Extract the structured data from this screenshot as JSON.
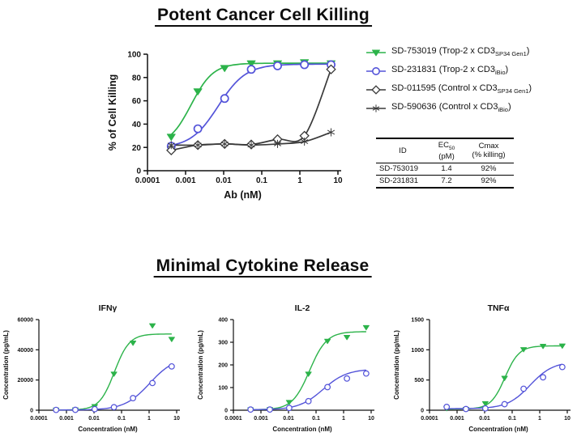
{
  "page": {
    "title1": "Potent Cancer Cell Killing",
    "title2": "Minimal Cytokine Release"
  },
  "legend": {
    "items": [
      {
        "id": "SD-753019",
        "pre": "SD-753019 (Trop-2 x CD3",
        "sub": "SP34 Gen1",
        "post": ")",
        "marker": "triangle-down",
        "color": "#2cb34a"
      },
      {
        "id": "SD-231831",
        "pre": "SD-231831 (Trop-2 x CD3",
        "sub": "iBio",
        "post": ")",
        "marker": "circle-open",
        "color": "#5353d9"
      },
      {
        "id": "SD-011595",
        "pre": "SD-011595 (Control x CD3",
        "sub": "SP34 Gen1",
        "post": ")",
        "marker": "diamond-open",
        "color": "#3a3a3a"
      },
      {
        "id": "SD-590636",
        "pre": "SD-590636 (Control x CD3",
        "sub": "iBio",
        "post": ")",
        "marker": "star",
        "color": "#3a3a3a"
      }
    ]
  },
  "table": {
    "col1_header": "ID",
    "col2_pre": "EC",
    "col2_sub": "50",
    "col2_unit": "(pM)",
    "col3_header": "Cmax",
    "col3_unit": "(% killing)",
    "rows": [
      {
        "id": "SD-753019",
        "ec50": "1.4",
        "cmax": "92%"
      },
      {
        "id": "SD-231831",
        "ec50": "7.2",
        "cmax": "92%"
      }
    ]
  },
  "chart_data": [
    {
      "type": "line",
      "title": "",
      "xlabel": "Ab (nM)",
      "ylabel": "% of Cell Killing",
      "xscale": "log",
      "xlim": [
        0.0001,
        10
      ],
      "xticks": [
        0.0001,
        0.001,
        0.01,
        0.1,
        1,
        10
      ],
      "xtick_labels": [
        "0.0001",
        "0.001",
        "0.01",
        "0.1",
        "1",
        "10"
      ],
      "ylim": [
        0,
        100
      ],
      "yticks": [
        0,
        20,
        40,
        60,
        80,
        100
      ],
      "x": [
        0.00042,
        0.0021,
        0.0106,
        0.053,
        0.26,
        1.32,
        6.6
      ],
      "series": [
        {
          "name": "SD-753019",
          "marker": "triangle-down",
          "color": "#2cb34a",
          "values": [
            29,
            68,
            88,
            92,
            92,
            93,
            92
          ],
          "fit": {
            "bottom": 21,
            "top": 92.3,
            "ec50": 0.0014,
            "hill": 1.5
          }
        },
        {
          "name": "SD-231831",
          "marker": "circle-open",
          "color": "#5353d9",
          "values": [
            21,
            36,
            62,
            87,
            90,
            91,
            91
          ],
          "fit": {
            "bottom": 19.5,
            "top": 91.5,
            "ec50": 0.0072,
            "hill": 1.2
          }
        },
        {
          "name": "SD-011595",
          "marker": "diamond-open",
          "color": "#3a3a3a",
          "values": [
            17.5,
            22,
            23,
            22.5,
            27,
            30,
            87
          ]
        },
        {
          "name": "SD-590636",
          "marker": "star",
          "color": "#3a3a3a",
          "values": [
            22,
            22,
            23,
            22,
            23,
            25,
            33
          ]
        }
      ]
    },
    {
      "type": "line",
      "title": "IFNγ",
      "xlabel": "Concentration (nM)",
      "ylabel": "Concentration (pg/mL)",
      "xscale": "log",
      "xlim": [
        0.0001,
        10
      ],
      "xticks": [
        0.0001,
        0.001,
        0.01,
        0.1,
        1,
        10
      ],
      "xtick_labels": [
        "0.0001",
        "0.001",
        "0.01",
        "0.1",
        "1",
        "10"
      ],
      "ylim": [
        0,
        60000
      ],
      "yticks": [
        0,
        20000,
        40000,
        60000
      ],
      "ytick_labels": [
        "0",
        "20000",
        "40000",
        "60000"
      ],
      "x": [
        0.00042,
        0.0021,
        0.0106,
        0.053,
        0.26,
        1.32,
        6.6
      ],
      "series": [
        {
          "name": "SD-753019",
          "marker": "triangle-down",
          "color": "#2cb34a",
          "values": [
            150,
            250,
            2500,
            24000,
            44500,
            56000,
            47000
          ],
          "fit": {
            "bottom": 100,
            "top": 50500,
            "ec50": 0.055,
            "hill": 1.6
          }
        },
        {
          "name": "SD-231831",
          "marker": "circle-open",
          "color": "#5353d9",
          "values": [
            200,
            250,
            700,
            2000,
            8000,
            18000,
            29000
          ],
          "fit": {
            "bottom": 100,
            "top": 35500,
            "ec50": 1.05,
            "hill": 0.95
          }
        }
      ]
    },
    {
      "type": "line",
      "title": "IL-2",
      "xlabel": "Concentration (nM)",
      "ylabel": "Concentration (pg/mL)",
      "xscale": "log",
      "xlim": [
        0.0001,
        10
      ],
      "xticks": [
        0.0001,
        0.001,
        0.01,
        0.1,
        1,
        10
      ],
      "xtick_labels": [
        "0.0001",
        "0.001",
        "0.01",
        "0.1",
        "1",
        "10"
      ],
      "ylim": [
        0,
        400
      ],
      "yticks": [
        0,
        100,
        200,
        300,
        400
      ],
      "ytick_labels": [
        "0",
        "100",
        "200",
        "300",
        "400"
      ],
      "x": [
        0.00042,
        0.0021,
        0.0106,
        0.053,
        0.26,
        1.32,
        6.6
      ],
      "series": [
        {
          "name": "SD-753019",
          "marker": "triangle-down",
          "color": "#2cb34a",
          "values": [
            2,
            3,
            35,
            160,
            305,
            322,
            365
          ],
          "fit": {
            "bottom": 2,
            "top": 347,
            "ec50": 0.058,
            "hill": 1.4
          }
        },
        {
          "name": "SD-231831",
          "marker": "circle-open",
          "color": "#5353d9",
          "values": [
            3,
            3,
            10,
            40,
            102,
            140,
            162
          ],
          "fit": {
            "bottom": 2,
            "top": 182,
            "ec50": 0.18,
            "hill": 1.0
          }
        }
      ]
    },
    {
      "type": "line",
      "title": "TNFα",
      "xlabel": "Concentration (nM)",
      "ylabel": "Concentration (pg/mL)",
      "xscale": "log",
      "xlim": [
        0.0001,
        10
      ],
      "xticks": [
        0.0001,
        0.001,
        0.01,
        0.1,
        1,
        10
      ],
      "xtick_labels": [
        "0.0001",
        "0.001",
        "0.01",
        "0.1",
        "1",
        "10"
      ],
      "ylim": [
        0,
        1500
      ],
      "yticks": [
        0,
        500,
        1000,
        1500
      ],
      "ytick_labels": [
        "0",
        "500",
        "1000",
        "1500"
      ],
      "x": [
        0.00042,
        0.0021,
        0.0106,
        0.053,
        0.26,
        1.32,
        6.6
      ],
      "series": [
        {
          "name": "SD-753019",
          "marker": "triangle-down",
          "color": "#2cb34a",
          "values": [
            30,
            15,
            110,
            530,
            1005,
            1060,
            1065
          ],
          "fit": {
            "bottom": 20,
            "top": 1065,
            "ec50": 0.055,
            "hill": 1.7
          }
        },
        {
          "name": "SD-231831",
          "marker": "circle-open",
          "color": "#5353d9",
          "values": [
            55,
            20,
            30,
            100,
            355,
            545,
            715
          ],
          "fit": {
            "bottom": 25,
            "top": 805,
            "ec50": 0.45,
            "hill": 1.05
          }
        }
      ]
    }
  ]
}
